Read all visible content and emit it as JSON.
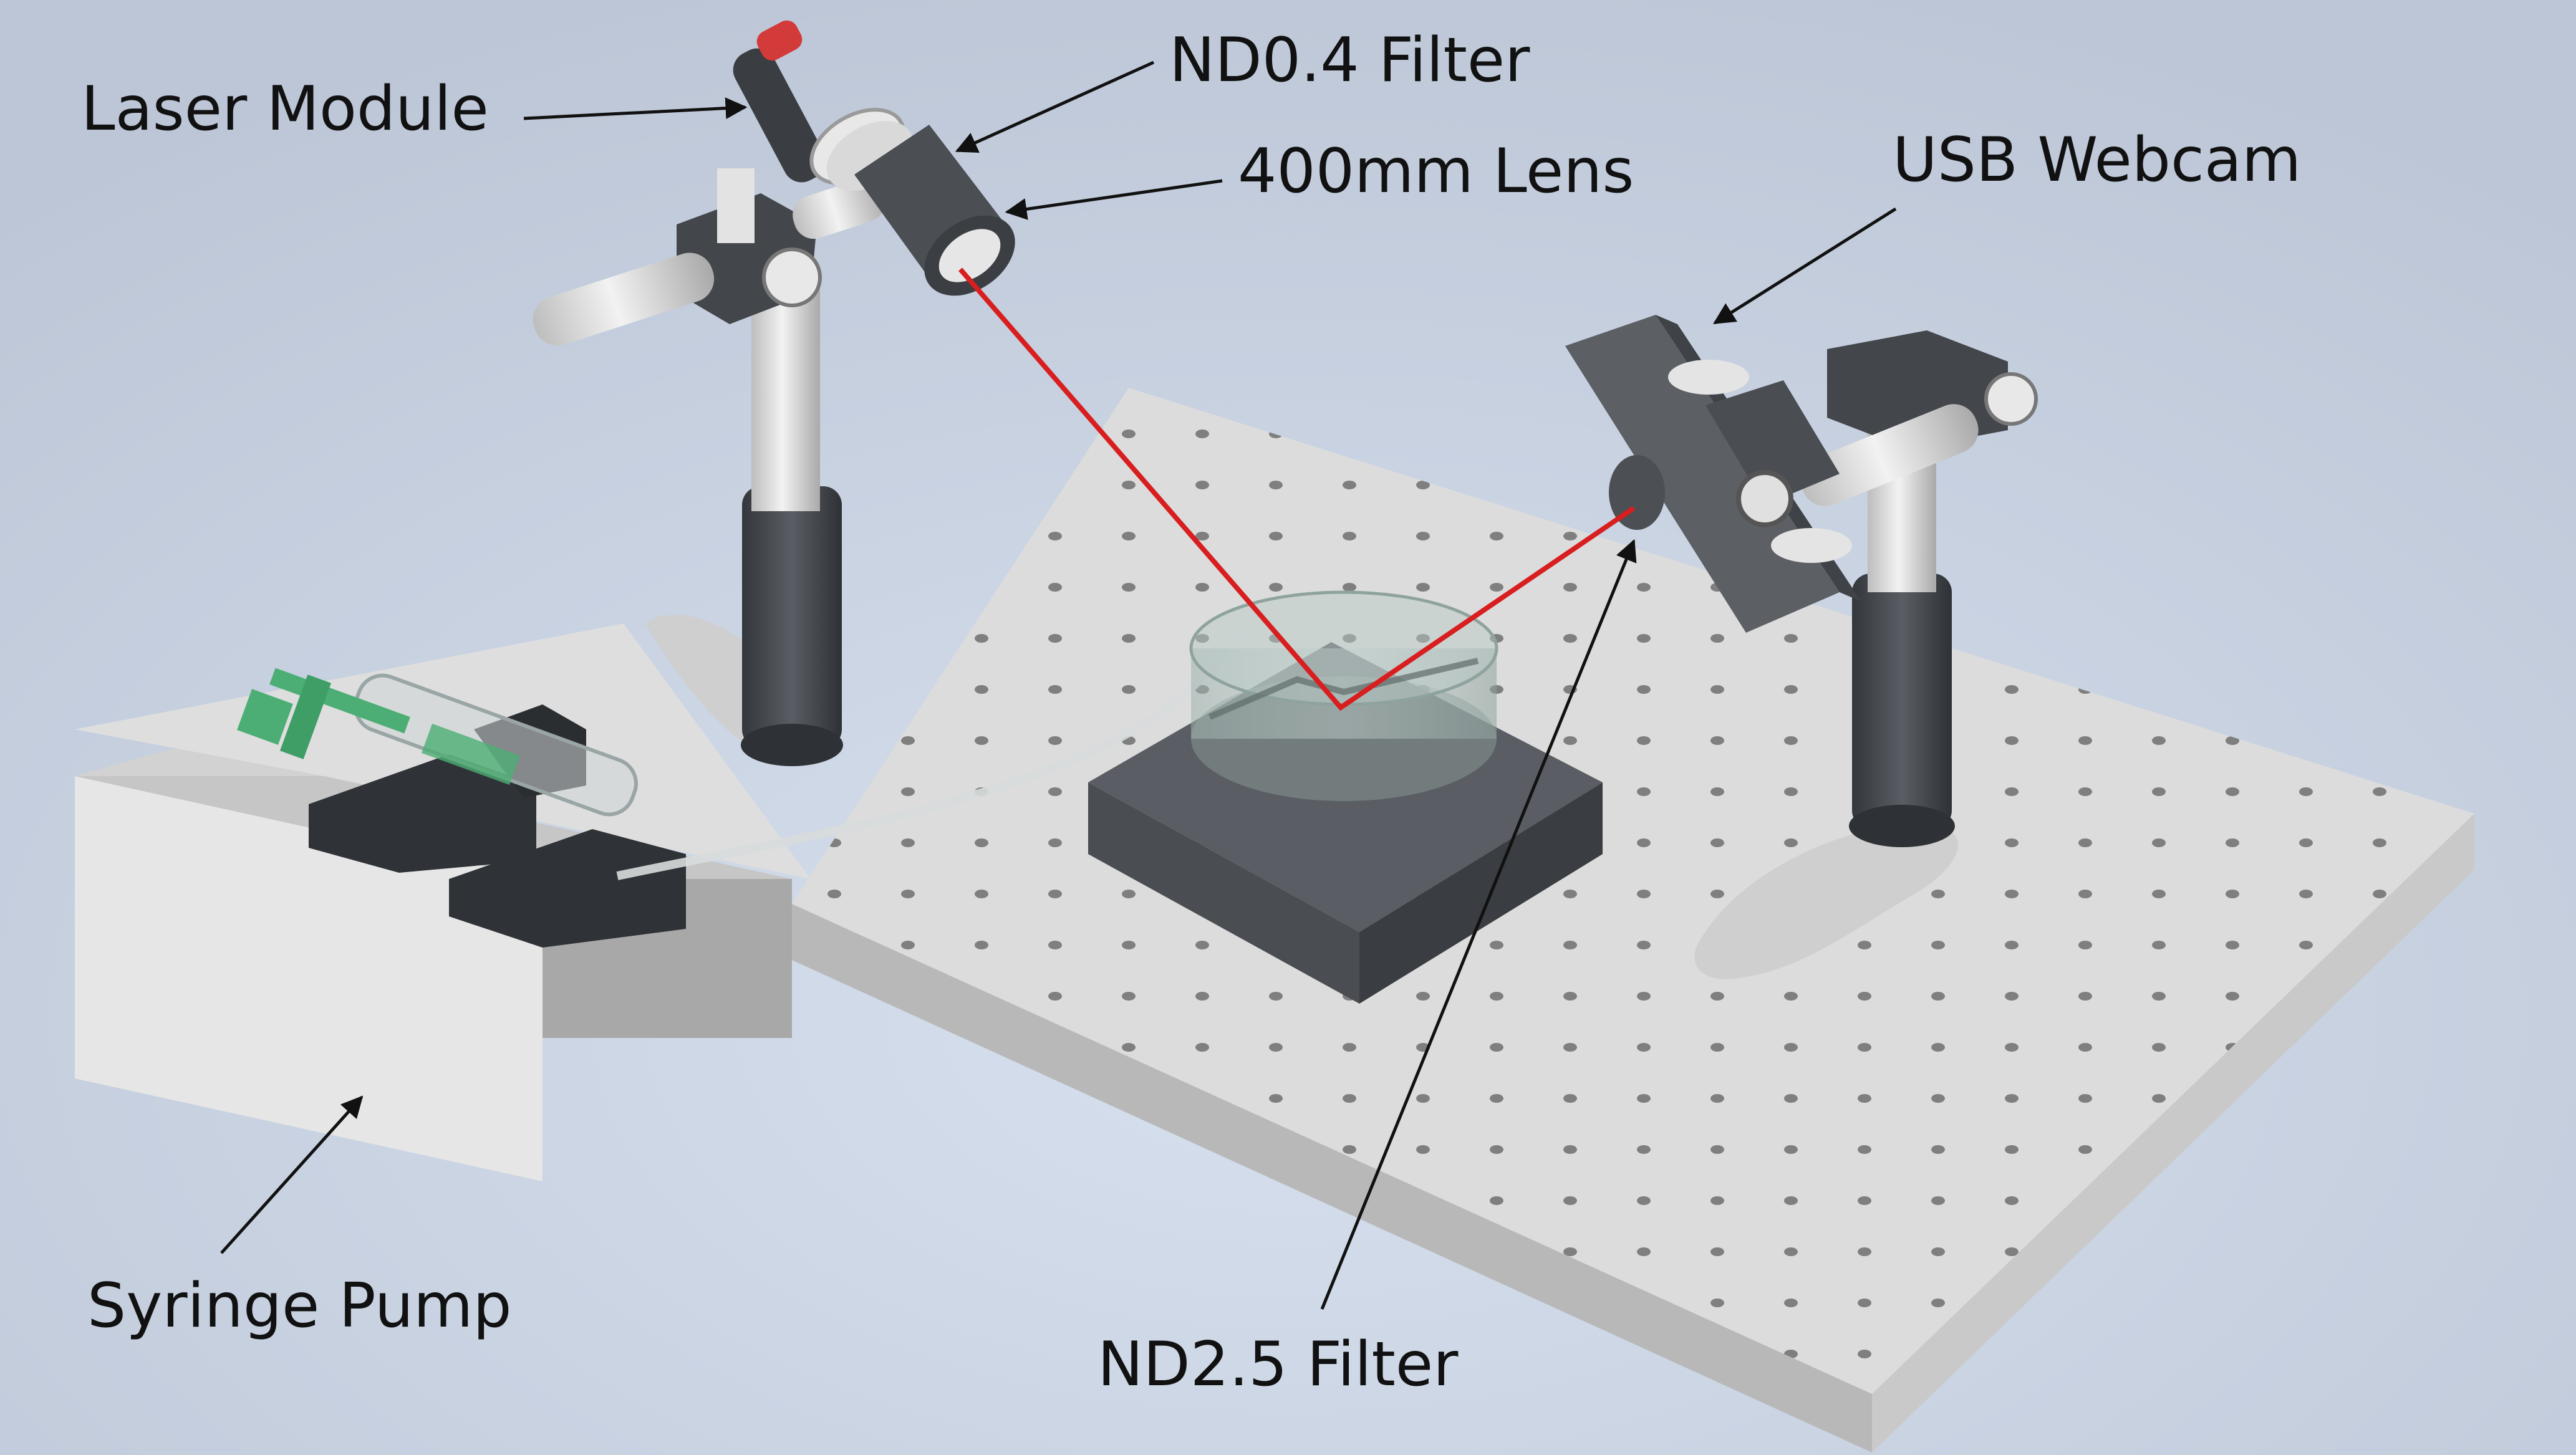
{
  "labels": {
    "laser_module": "Laser Module",
    "nd04_filter": "ND0.4 Filter",
    "lens_400mm": "400mm Lens",
    "usb_webcam": "USB Webcam",
    "nd25_filter": "ND2.5 Filter",
    "syringe_pump": "Syringe Pump"
  },
  "colors": {
    "background": "#c9d4e4",
    "breadboard": "#d9d9d9",
    "mount_dark": "#4a4d52",
    "post_light": "#e4e4e4",
    "laser_beam": "#d81e1e",
    "syringe_plunger": "#4cae74",
    "label_text": "#111111"
  }
}
